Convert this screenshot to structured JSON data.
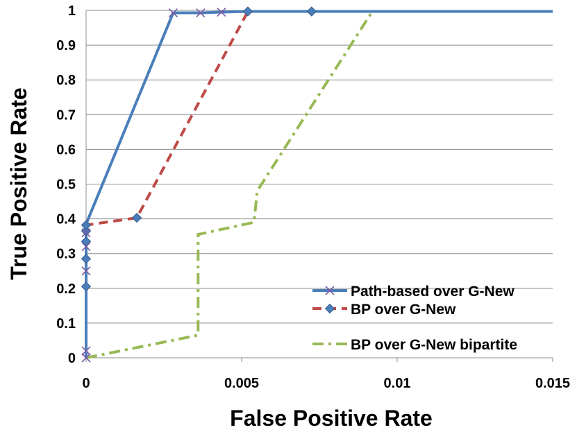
{
  "chart_data": {
    "type": "line",
    "title": "",
    "xlabel": "False Positive Rate",
    "ylabel": "True Positive Rate",
    "xlim": [
      0,
      0.015
    ],
    "ylim": [
      0,
      1
    ],
    "x_ticks": [
      0,
      0.005,
      0.01,
      0.015
    ],
    "x_tick_labels": [
      "0",
      "0.005",
      "0.01",
      "0.015"
    ],
    "y_ticks": [
      0,
      0.1,
      0.2,
      0.3,
      0.4,
      0.5,
      0.6,
      0.7,
      0.8,
      0.9,
      1
    ],
    "y_tick_labels": [
      "0",
      "0.1",
      "0.2",
      "0.3",
      "0.4",
      "0.5",
      "0.6",
      "0.7",
      "0.8",
      "0.9",
      "1"
    ],
    "grid": "horizontal",
    "legend_position": "bottom-right",
    "series": [
      {
        "name": "Path-based over G-New",
        "color": "#4a7ebb",
        "style": "solid",
        "marker": "x",
        "x": [
          0,
          0,
          0,
          0,
          0,
          0,
          0,
          0.0028,
          0.00368,
          0.00435,
          0.0052,
          0.015
        ],
        "y": [
          0,
          0.02,
          0.25,
          0.32,
          0.36,
          0.375,
          0.385,
          0.993,
          0.993,
          0.995,
          0.997,
          0.997
        ],
        "markers": [
          {
            "x": 0,
            "y": 0
          },
          {
            "x": 0,
            "y": 0.02
          },
          {
            "x": 0,
            "y": 0.25
          },
          {
            "x": 0,
            "y": 0.32
          },
          {
            "x": 0,
            "y": 0.36
          },
          {
            "x": 0.0028,
            "y": 0.993
          },
          {
            "x": 0.00368,
            "y": 0.993
          },
          {
            "x": 0.00435,
            "y": 0.995
          }
        ]
      },
      {
        "name": "BP over G-New",
        "color": "#be4b48",
        "style": "dashed",
        "marker": "diamond",
        "x": [
          0,
          0,
          0,
          0,
          0,
          0,
          0.00163,
          0.0052,
          0.00725,
          0.015
        ],
        "y": [
          0,
          0.205,
          0.285,
          0.335,
          0.365,
          0.382,
          0.403,
          0.997,
          0.997,
          0.997
        ],
        "markers": [
          {
            "x": 0,
            "y": 0.205
          },
          {
            "x": 0,
            "y": 0.285
          },
          {
            "x": 0,
            "y": 0.335
          },
          {
            "x": 0,
            "y": 0.365
          },
          {
            "x": 0,
            "y": 0.382
          },
          {
            "x": 0.00163,
            "y": 0.403
          },
          {
            "x": 0.0052,
            "y": 0.997
          },
          {
            "x": 0.00725,
            "y": 0.997
          }
        ]
      },
      {
        "name": "BP over G-New bipartite",
        "color": "#98b954",
        "style": "dash-dot",
        "marker": "none",
        "x": [
          0,
          0.0036,
          0.0036,
          0.0054,
          0.0055,
          0.0092,
          0.015
        ],
        "y": [
          0,
          0.065,
          0.355,
          0.39,
          0.48,
          0.997,
          0.997
        ],
        "markers": []
      }
    ]
  }
}
